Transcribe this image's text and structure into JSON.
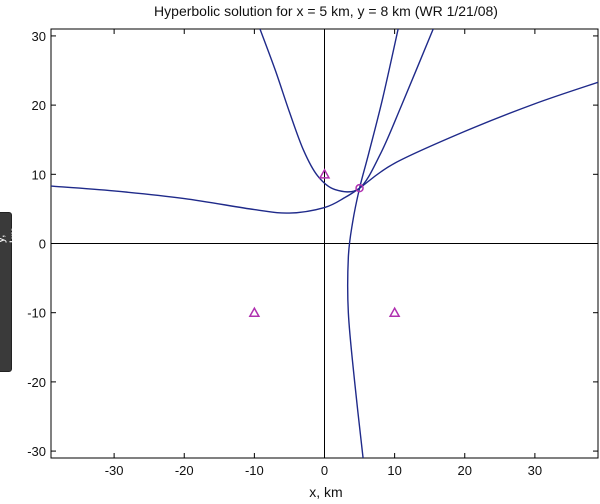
{
  "chart_data": {
    "type": "line",
    "title": "Hyperbolic solution for x = 5 km,  y = 8 km (WR 1/21/08)",
    "xlabel": "x, km",
    "ylabel": "y, km",
    "xlim": [
      -39,
      39
    ],
    "ylim": [
      -31,
      31
    ],
    "xticks": [
      -30,
      -20,
      -10,
      0,
      10,
      20,
      30
    ],
    "yticks": [
      -30,
      -20,
      -10,
      0,
      10,
      20,
      30
    ],
    "grid": false,
    "line_color": "#1f2a8a",
    "marker_color": "#b030b0",
    "axes_lines": {
      "x": 0,
      "y": 0
    },
    "stations": [
      {
        "x": 0,
        "y": 10
      },
      {
        "x": -10,
        "y": -10
      },
      {
        "x": 10,
        "y": -10
      }
    ],
    "solution_point": {
      "x": 5,
      "y": 8
    },
    "series": [
      {
        "values": [
          [
            -39,
            8.3
          ],
          [
            -30,
            7.6
          ],
          [
            -20,
            6.5
          ],
          [
            -10,
            4.9
          ],
          [
            -5,
            4.4
          ],
          [
            0,
            5.2
          ],
          [
            3,
            6.7
          ],
          [
            5,
            8
          ],
          [
            10,
            11.6
          ],
          [
            20,
            16.2
          ],
          [
            30,
            20.2
          ],
          [
            39,
            23.3
          ]
        ]
      },
      {
        "values": [
          [
            -9.2,
            31
          ],
          [
            -7,
            25
          ],
          [
            -5,
            19
          ],
          [
            -3,
            13.5
          ],
          [
            -1,
            9.8
          ],
          [
            1.5,
            7.8
          ],
          [
            5,
            8
          ],
          [
            8,
            13
          ],
          [
            11,
            20
          ],
          [
            15.5,
            31
          ]
        ]
      },
      {
        "values": [
          [
            5.5,
            -31
          ],
          [
            4.3,
            -20
          ],
          [
            3.4,
            -10
          ],
          [
            3.4,
            -2
          ],
          [
            4,
            3
          ],
          [
            5,
            8
          ],
          [
            6.3,
            13
          ],
          [
            8.3,
            21
          ],
          [
            10.5,
            31
          ]
        ]
      }
    ]
  }
}
